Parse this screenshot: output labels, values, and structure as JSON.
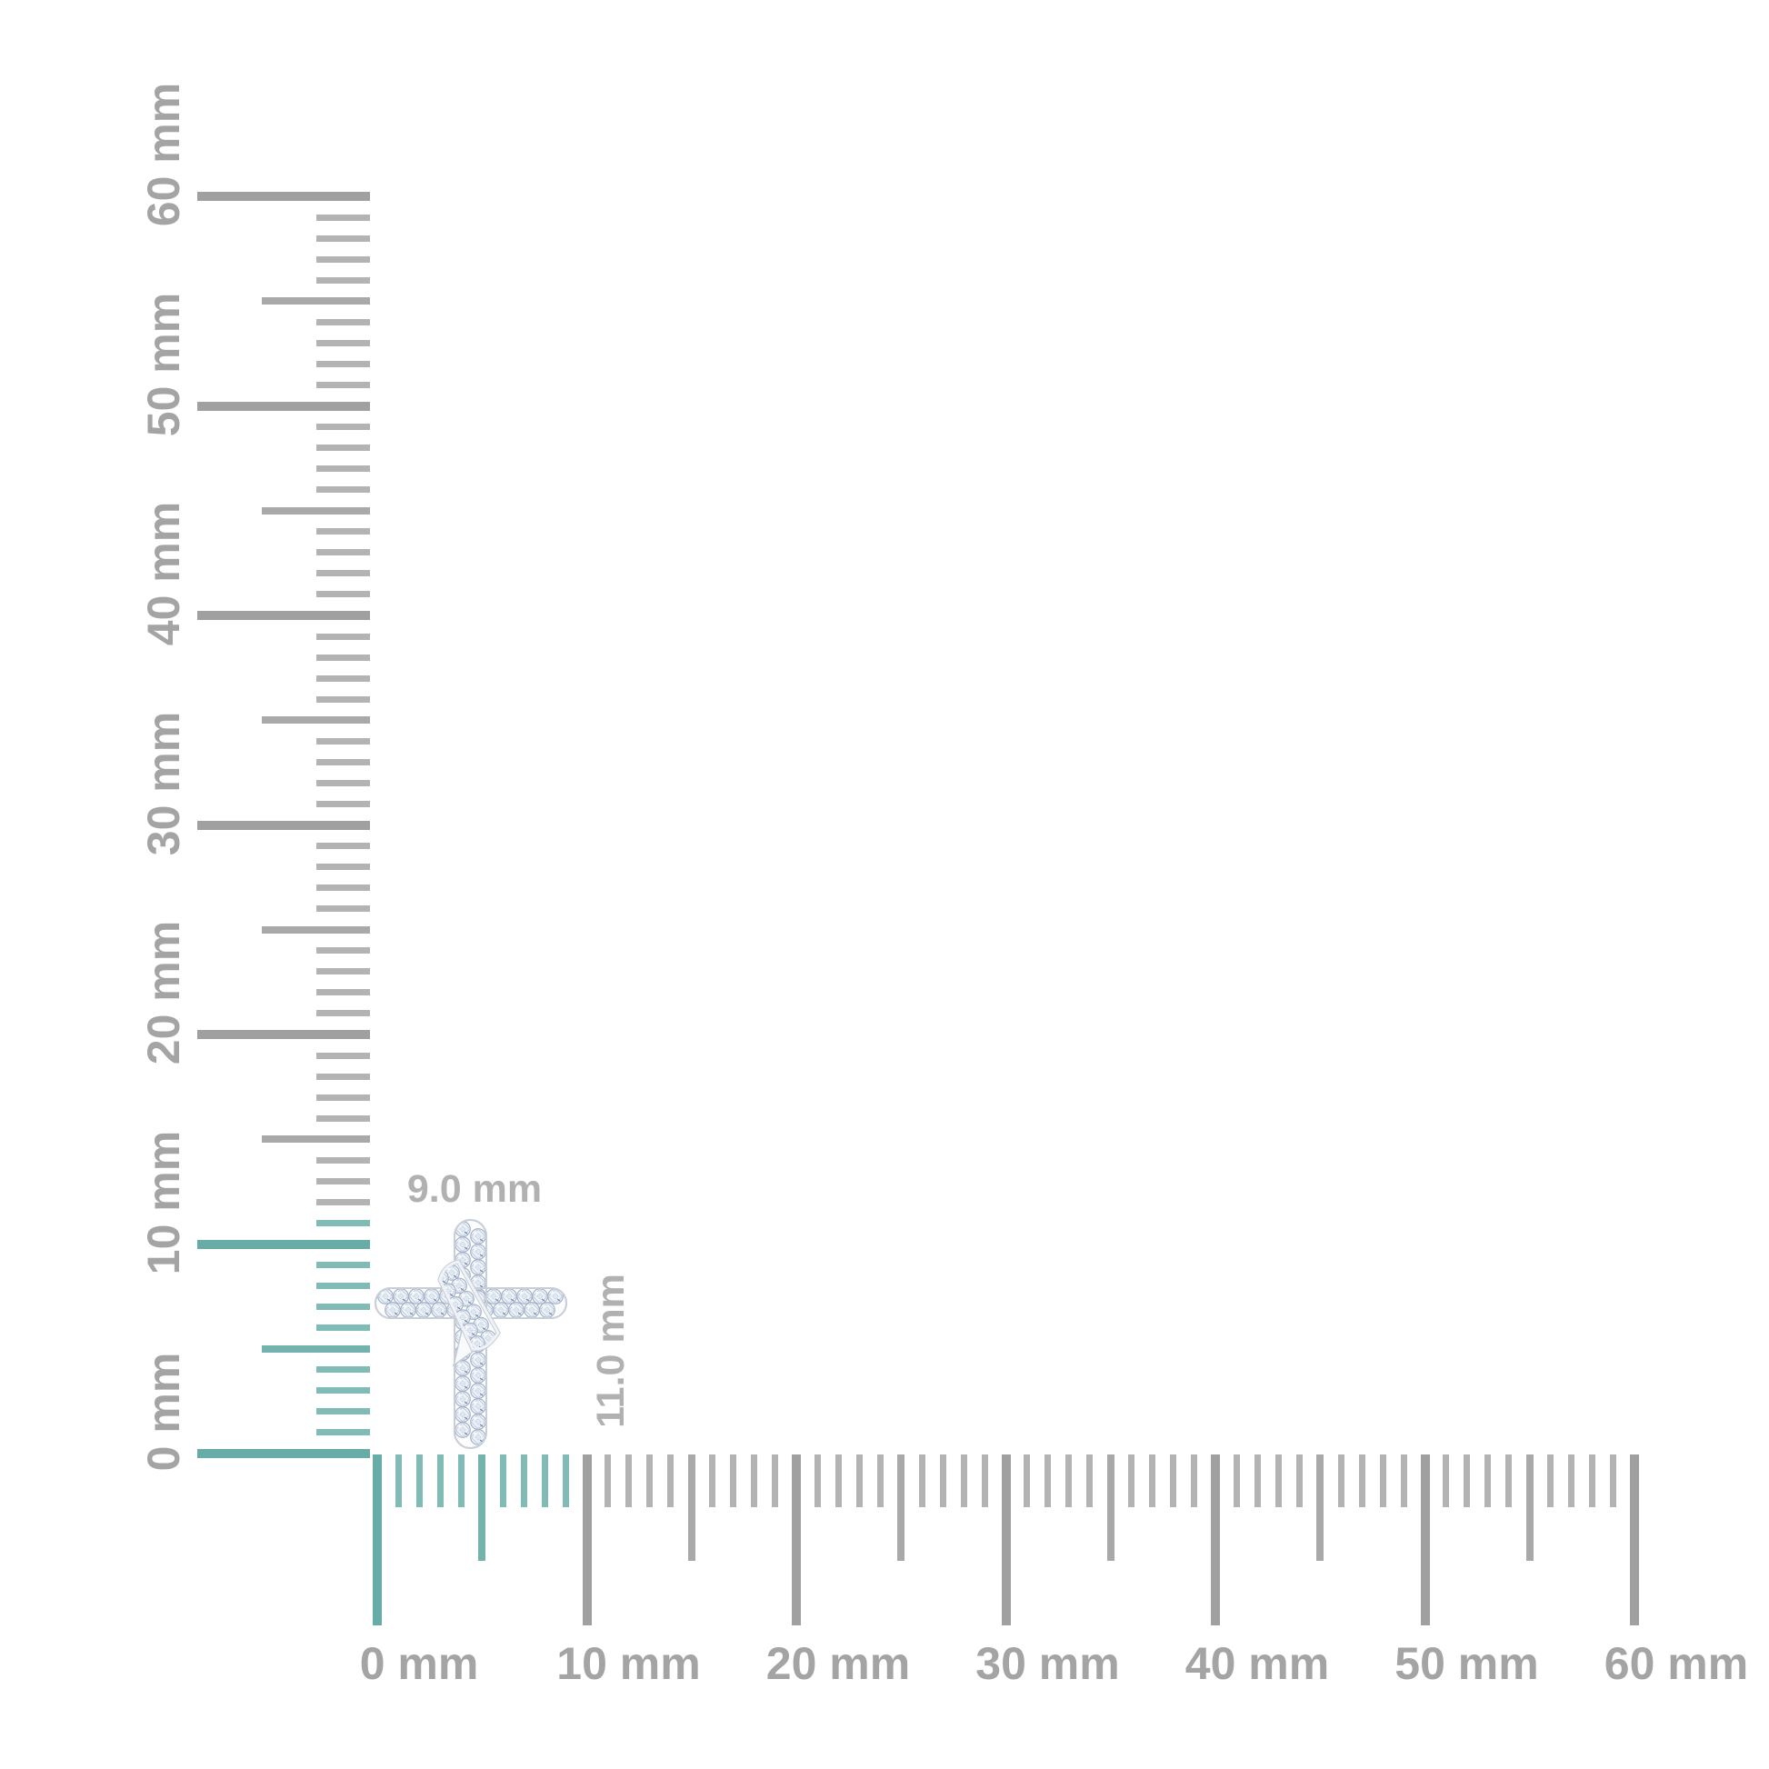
{
  "pendant": {
    "description": "diamond pave cross pendant with diagonal ribbon wrap",
    "width_label": "9.0 mm",
    "height_label": "11.0 mm"
  },
  "rulers": {
    "unit": "mm",
    "horizontal": {
      "max_mm": 60,
      "major_every_mm": 10,
      "medium_every_mm": 5,
      "highlight_from_mm": 0,
      "highlight_to_mm": 9,
      "labels": [
        "0 mm",
        "10 mm",
        "20 mm",
        "30 mm",
        "40 mm",
        "50 mm",
        "60 mm"
      ]
    },
    "vertical": {
      "max_mm": 60,
      "major_every_mm": 10,
      "medium_every_mm": 5,
      "highlight_from_mm": 0,
      "highlight_to_mm": 11,
      "labels": [
        "0 mm",
        "10 mm",
        "20 mm",
        "30 mm",
        "40 mm",
        "50 mm",
        "60 mm"
      ]
    }
  },
  "colors": {
    "teal_major": "#68aca7",
    "teal_medium": "#74b2ad",
    "teal_minor": "#80bbb6",
    "gray_major": "#a0a0a0",
    "gray_medium": "#a9a9a9",
    "gray_minor": "#b3b3b3",
    "label_gray": "#a4a4a4",
    "dim_label_gray": "#b1b1b1",
    "metal_edge": "#c6ccd6",
    "stone_fill": "#f1f5fa",
    "stone_facet": "#9fadc6"
  }
}
